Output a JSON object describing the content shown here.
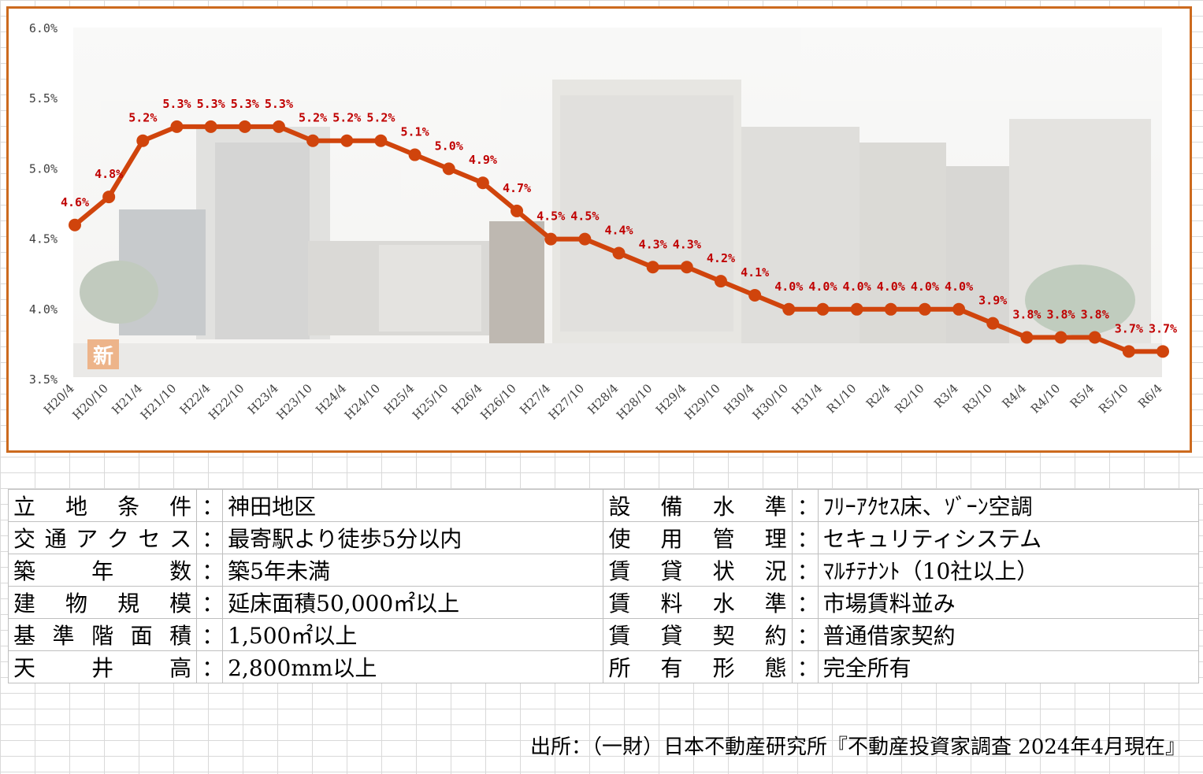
{
  "chart_data": {
    "type": "line",
    "title": "",
    "xlabel": "",
    "ylabel": "",
    "ylim": [
      3.5,
      6.0
    ],
    "yticks": [
      "3.5%",
      "4.0%",
      "4.5%",
      "5.0%",
      "5.5%",
      "6.0%"
    ],
    "ytick_values": [
      3.5,
      4.0,
      4.5,
      5.0,
      5.5,
      6.0
    ],
    "categories": [
      "H20/4",
      "H20/10",
      "H21/4",
      "H21/10",
      "H22/4",
      "H22/10",
      "H23/4",
      "H23/10",
      "H24/4",
      "H24/10",
      "H25/4",
      "H25/10",
      "H26/4",
      "H26/10",
      "H27/4",
      "H27/10",
      "H28/4",
      "H28/10",
      "H29/4",
      "H29/10",
      "H30/4",
      "H30/10",
      "H31/4",
      "R1/10",
      "R2/4",
      "R2/10",
      "R3/4",
      "R3/10",
      "R4/4",
      "R4/10",
      "R5/4",
      "R5/10",
      "R6/4"
    ],
    "series": [
      {
        "values": [
          4.6,
          4.8,
          5.2,
          5.3,
          5.3,
          5.3,
          5.3,
          5.2,
          5.2,
          5.2,
          5.1,
          5.0,
          4.9,
          4.7,
          4.5,
          4.5,
          4.4,
          4.3,
          4.3,
          4.2,
          4.1,
          4.0,
          4.0,
          4.0,
          4.0,
          4.0,
          4.0,
          3.9,
          3.8,
          3.8,
          3.8,
          3.7,
          3.7
        ],
        "labels": [
          "4.6%",
          "4.8%",
          "5.2%",
          "5.3%",
          "5.3%",
          "5.3%",
          "5.3%",
          "5.2%",
          "5.2%",
          "5.2%",
          "5.1%",
          "5.0%",
          "4.9%",
          "4.7%",
          "4.5%",
          "4.5%",
          "4.4%",
          "4.3%",
          "4.3%",
          "4.2%",
          "4.1%",
          "4.0%",
          "4.0%",
          "4.0%",
          "4.0%",
          "4.0%",
          "4.0%",
          "3.9%",
          "3.8%",
          "3.8%",
          "3.8%",
          "3.7%",
          "3.7%"
        ],
        "color": "#d0440c",
        "label_color": "#c00000"
      }
    ],
    "grid": false,
    "background": "faded street photo with buildings"
  },
  "spec": {
    "rows": [
      {
        "left_label": "立地条件",
        "left_value": "神田地区",
        "right_label": "設備水準",
        "right_value": "ﾌﾘｰｱｸｾｽ床、ｿﾞｰﾝ空調"
      },
      {
        "left_label": "交通アクセス",
        "left_value": "最寄駅より徒歩5分以内",
        "right_label": "使用管理",
        "right_value": "セキュリティシステム"
      },
      {
        "left_label": "築年数",
        "left_value": "築5年未満",
        "right_label": "賃貸状況",
        "right_value": "ﾏﾙﾁﾃﾅﾝﾄ（10社以上）"
      },
      {
        "left_label": "建物規模",
        "left_value": "延床面積50,000㎡以上",
        "right_label": "賃料水準",
        "right_value": "市場賃料並み"
      },
      {
        "left_label": "基準階面積",
        "left_value": "1,500㎡以上",
        "right_label": "賃貸契約",
        "right_value": "普通借家契約"
      },
      {
        "left_label": "天井高",
        "left_value": "2,800mm以上",
        "right_label": "所有形態",
        "right_value": "完全所有"
      }
    ],
    "colon": "："
  },
  "source": "出所：（一財）日本不動産研究所『不動産投資家調査 2024年4月現在』",
  "photo_badge": "新"
}
